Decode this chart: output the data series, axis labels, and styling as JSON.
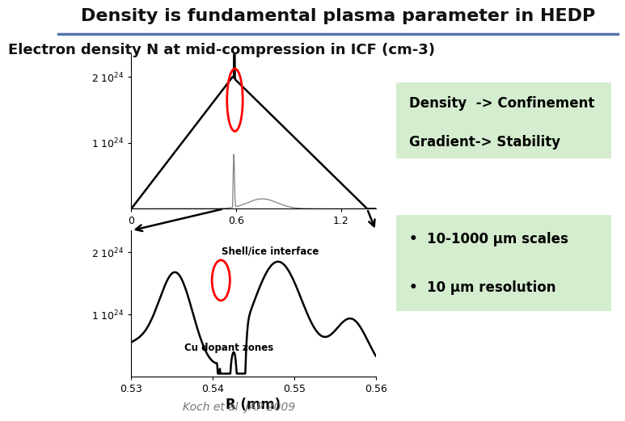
{
  "title": "Density is fundamental plasma parameter in HEDP",
  "subtitle": "Electron density N at mid-compression in ICF (cm-3)",
  "green_box1_lines": [
    "Density  -> Confinement",
    "Gradient-> Stability"
  ],
  "bullet1": "10-1000 μm scales",
  "bullet2": "10 μm resolution",
  "xlabel": "R (mm)",
  "annotation_shell": "Shell/ice interface",
  "annotation_cu": "Cu dopant zones",
  "citation": "Koch et al  JAP 2009",
  "title_color": "#111111",
  "green_box_color": "#d4edcf",
  "background_color": "#ffffff",
  "title_fontsize": 16,
  "subtitle_fontsize": 13,
  "sep_line_color": "#5577aa"
}
